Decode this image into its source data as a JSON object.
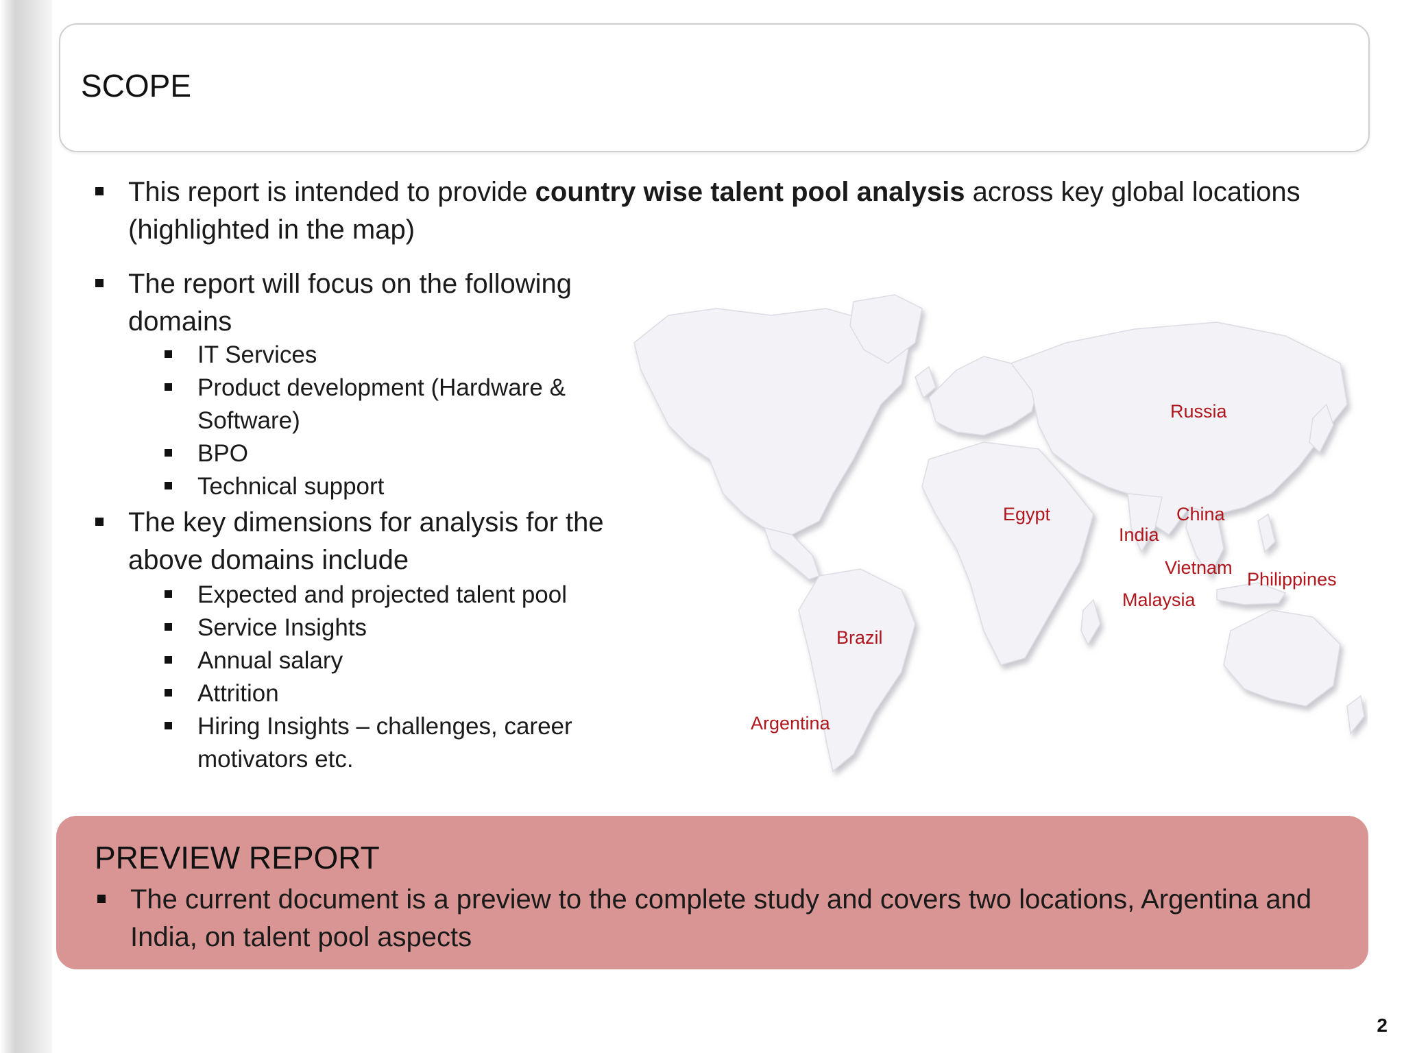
{
  "title": "SCOPE",
  "bullets": {
    "intro": {
      "pre": "This report is intended to provide ",
      "bold": "country wise talent pool analysis",
      "post": " across key global locations (highlighted in the map)"
    },
    "domains": {
      "text": "The report will focus on the following domains",
      "items": [
        "IT Services",
        "Product development (Hardware & Software)",
        "BPO",
        "Technical support"
      ]
    },
    "dimensions": {
      "text": "The key dimensions for analysis for the above domains include",
      "items": [
        "Expected and projected talent pool",
        "Service Insights",
        "Annual salary",
        "Attrition",
        "Hiring Insights – challenges, career motivators etc."
      ]
    }
  },
  "map": {
    "countries": [
      "Russia",
      "Egypt",
      "China",
      "India",
      "Vietnam",
      "Philippines",
      "Malaysia",
      "Brazil",
      "Argentina"
    ],
    "label_color": "#b0161c",
    "land_color": "#f3f3f7"
  },
  "preview": {
    "title": "PREVIEW REPORT",
    "text": "The current document is a preview  to the complete study and covers two locations, Argentina and India, on talent pool aspects",
    "color": "#d99593"
  },
  "page_number": "2"
}
